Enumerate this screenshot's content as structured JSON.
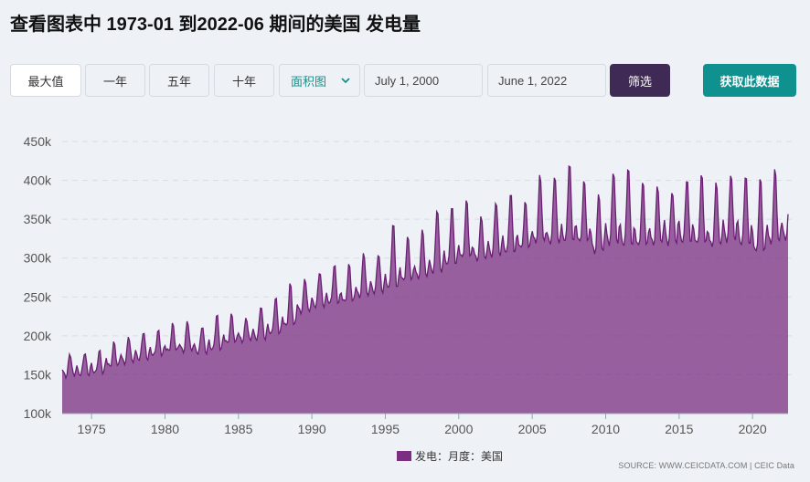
{
  "header": {
    "title": "查看图表中 1973-01 到2022-06 期间的美国 发电量"
  },
  "controls": {
    "max_label": "最大值",
    "one_year_label": "一年",
    "five_year_label": "五年",
    "ten_year_label": "十年",
    "chart_type_value": "面积图",
    "start_date": "July 1, 2000",
    "end_date": "June 1, 2022",
    "filter_label": "筛选",
    "get_data_label": "获取此数据"
  },
  "source_text": "SOURCE: WWW.CEICDATA.COM | CEIC Data",
  "colors": {
    "area_fill": "#7b2d82",
    "area_line": "#6a1f72",
    "filter_button": "#3f2a56",
    "get_data_button": "#0f9190"
  },
  "chart_data": {
    "type": "area",
    "title": "",
    "xlabel": "",
    "ylabel": "",
    "ylim": [
      100000,
      450000
    ],
    "y_ticks": [
      100000,
      150000,
      200000,
      250000,
      300000,
      350000,
      400000,
      450000
    ],
    "y_tick_labels": [
      "100k",
      "150k",
      "200k",
      "250k",
      "300k",
      "350k",
      "400k",
      "450k"
    ],
    "x_range": [
      "1973-01",
      "2022-06"
    ],
    "x_ticks": [
      1975,
      1980,
      1985,
      1990,
      1995,
      2000,
      2005,
      2010,
      2015,
      2020
    ],
    "x_tick_labels": [
      "1975",
      "1980",
      "1985",
      "1990",
      "1995",
      "2000",
      "2005",
      "2010",
      "2015",
      "2020"
    ],
    "frequency": "monthly",
    "grid": "horizontal-dashed",
    "legend_position": "bottom-center",
    "series": [
      {
        "name": "发电：月度：美国",
        "annual": {
          "x": [
            1973,
            1974,
            1975,
            1976,
            1977,
            1978,
            1979,
            1980,
            1981,
            1982,
            1983,
            1984,
            1985,
            1986,
            1987,
            1988,
            1989,
            1990,
            1991,
            1992,
            1993,
            1994,
            1995,
            1996,
            1997,
            1998,
            1999,
            2000,
            2001,
            2002,
            2003,
            2004,
            2005,
            2006,
            2007,
            2008,
            2009,
            2010,
            2011,
            2012,
            2013,
            2014,
            2015,
            2016,
            2017,
            2018,
            2019,
            2020,
            2021,
            2022
          ],
          "base": [
            148000,
            150000,
            152000,
            160000,
            165000,
            170000,
            175000,
            180000,
            180000,
            178000,
            182000,
            190000,
            193000,
            196000,
            203000,
            212000,
            230000,
            238000,
            242000,
            243000,
            250000,
            256000,
            262000,
            270000,
            274000,
            282000,
            292000,
            300000,
            297000,
            303000,
            307000,
            312000,
            320000,
            320000,
            322000,
            320000,
            306000,
            318000,
            316000,
            315000,
            317000,
            318000,
            320000,
            318000,
            315000,
            322000,
            317000,
            307000,
            318000,
            325000
          ],
          "summer_peak": [
            176000,
            178000,
            180000,
            190000,
            198000,
            205000,
            206000,
            214000,
            218000,
            212000,
            226000,
            226000,
            222000,
            238000,
            248000,
            265000,
            272000,
            282000,
            290000,
            290000,
            305000,
            305000,
            343000,
            325000,
            335000,
            362000,
            365000,
            372000,
            352000,
            372000,
            382000,
            370000,
            405000,
            405000,
            420000,
            397000,
            380000,
            410000,
            415000,
            395000,
            390000,
            385000,
            400000,
            405000,
            395000,
            407000,
            405000,
            400000,
            412000,
            378000
          ],
          "winter_peak": [
            160000,
            162000,
            165000,
            175000,
            180000,
            182000,
            185000,
            190000,
            193000,
            190000,
            195000,
            205000,
            208000,
            210000,
            215000,
            228000,
            245000,
            250000,
            255000,
            258000,
            268000,
            272000,
            280000,
            292000,
            295000,
            300000,
            310000,
            320000,
            318000,
            325000,
            330000,
            333000,
            340000,
            335000,
            345000,
            345000,
            340000,
            350000,
            345000,
            340000,
            345000,
            355000,
            350000,
            340000,
            338000,
            355000,
            350000,
            338000,
            350000,
            350000
          ]
        }
      }
    ]
  }
}
